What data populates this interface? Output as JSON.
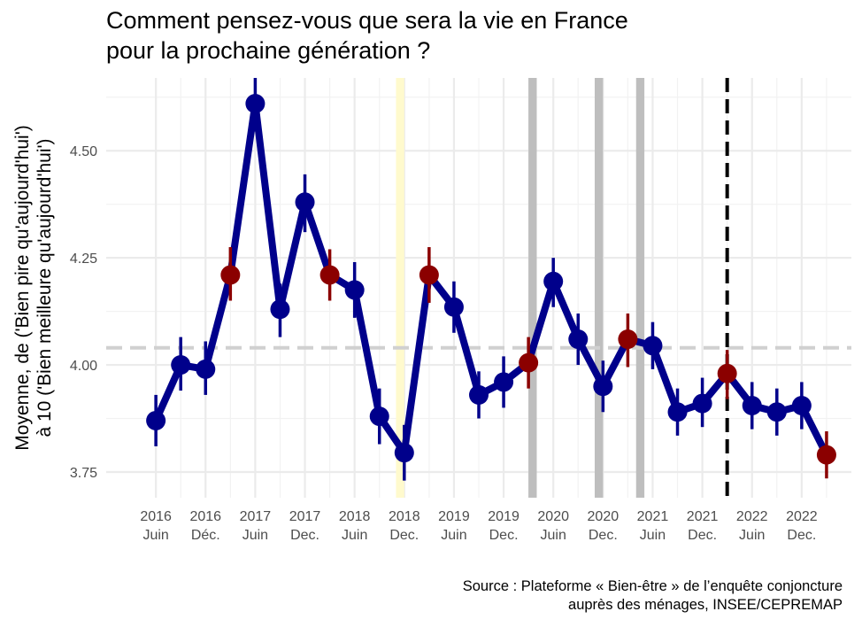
{
  "chart_data": {
    "type": "line",
    "title": [
      "Comment pensez-vous que sera la vie en France",
      "pour la prochaine génération ?"
    ],
    "ylabel": [
      "Moyenne, de  ('Bien pire qu'aujourd'hui')",
      "à 10 ('Bien meilleure qu'aujourd'hui')"
    ],
    "xlabel": "",
    "source": [
      "Source : Plateforme « Bien-être » de l’enquête conjoncture",
      "auprès des ménages, INSEE/CEPREMAP"
    ],
    "ylim": [
      3.69,
      4.67
    ],
    "y_ticks": [
      3.75,
      4.0,
      4.25,
      4.5
    ],
    "y_tick_labels": [
      "3.75",
      "4.00",
      "4.25",
      "4.50"
    ],
    "x_ticks": [
      {
        "year": "2016",
        "label": "Juin",
        "date": "2016-06"
      },
      {
        "year": "2016",
        "label": "Déc.",
        "date": "2016-12"
      },
      {
        "year": "2017",
        "label": "Juin",
        "date": "2017-06"
      },
      {
        "year": "2017",
        "label": "Dec.",
        "date": "2017-12"
      },
      {
        "year": "2018",
        "label": "Juin",
        "date": "2018-06"
      },
      {
        "year": "2018",
        "label": "Dec.",
        "date": "2018-12"
      },
      {
        "year": "2019",
        "label": "Juin",
        "date": "2019-06"
      },
      {
        "year": "2019",
        "label": "Dec.",
        "date": "2019-12"
      },
      {
        "year": "2020",
        "label": "Juin",
        "date": "2020-06"
      },
      {
        "year": "2020",
        "label": "Dec.",
        "date": "2020-12"
      },
      {
        "year": "2021",
        "label": "Juin",
        "date": "2021-06"
      },
      {
        "year": "2021",
        "label": "Dec.",
        "date": "2021-12"
      },
      {
        "year": "2022",
        "label": "Juin",
        "date": "2022-06"
      },
      {
        "year": "2022",
        "label": "Dec.",
        "date": "2022-12"
      }
    ],
    "x_range": [
      "2015-12",
      "2023-06"
    ],
    "reference_line": {
      "value": 4.04,
      "style": "dashed",
      "color": "#d0d0d0"
    },
    "vertical_line": {
      "date": "2022-03",
      "style": "dashed",
      "color": "#000000"
    },
    "shaded_periods": [
      {
        "start": "2018-11",
        "end": "2018-12",
        "color": "#fffacd"
      },
      {
        "start": "2020-03",
        "end": "2020-04",
        "color": "#bebebe"
      },
      {
        "start": "2020-11",
        "end": "2020-12",
        "color": "#bebebe"
      },
      {
        "start": "2021-04",
        "end": "2021-05",
        "color": "#bebebe"
      }
    ],
    "grid": true,
    "line_color": "#00008b",
    "highlight_color": "#8b0000",
    "series": [
      {
        "points": [
          {
            "date": "2016-06",
            "y": 3.87,
            "lo": 3.81,
            "hi": 3.93,
            "highlight": false
          },
          {
            "date": "2016-09",
            "y": 4.0,
            "lo": 3.94,
            "hi": 4.065,
            "highlight": false
          },
          {
            "date": "2016-12",
            "y": 3.99,
            "lo": 3.93,
            "hi": 4.055,
            "highlight": false
          },
          {
            "date": "2017-03",
            "y": 4.21,
            "lo": 4.15,
            "hi": 4.275,
            "highlight": true
          },
          {
            "date": "2017-06",
            "y": 4.61,
            "lo": 4.545,
            "hi": 4.67,
            "highlight": false
          },
          {
            "date": "2017-09",
            "y": 4.13,
            "lo": 4.065,
            "hi": 4.19,
            "highlight": false
          },
          {
            "date": "2017-12",
            "y": 4.38,
            "lo": 4.31,
            "hi": 4.445,
            "highlight": false
          },
          {
            "date": "2018-03",
            "y": 4.21,
            "lo": 4.15,
            "hi": 4.27,
            "highlight": true
          },
          {
            "date": "2018-06",
            "y": 4.175,
            "lo": 4.11,
            "hi": 4.24,
            "highlight": false
          },
          {
            "date": "2018-09",
            "y": 3.88,
            "lo": 3.815,
            "hi": 3.945,
            "highlight": false
          },
          {
            "date": "2018-12",
            "y": 3.795,
            "lo": 3.73,
            "hi": 3.86,
            "highlight": false
          },
          {
            "date": "2019-03",
            "y": 4.21,
            "lo": 4.145,
            "hi": 4.275,
            "highlight": true
          },
          {
            "date": "2019-06",
            "y": 4.135,
            "lo": 4.075,
            "hi": 4.195,
            "highlight": false
          },
          {
            "date": "2019-09",
            "y": 3.93,
            "lo": 3.875,
            "hi": 3.985,
            "highlight": false
          },
          {
            "date": "2019-12",
            "y": 3.96,
            "lo": 3.9,
            "hi": 4.02,
            "highlight": false
          },
          {
            "date": "2020-03",
            "y": 4.005,
            "lo": 3.945,
            "hi": 4.065,
            "highlight": true
          },
          {
            "date": "2020-06",
            "y": 4.195,
            "lo": 4.135,
            "hi": 4.25,
            "highlight": false
          },
          {
            "date": "2020-09",
            "y": 4.06,
            "lo": 4.0,
            "hi": 4.12,
            "highlight": false
          },
          {
            "date": "2020-12",
            "y": 3.95,
            "lo": 3.89,
            "hi": 4.01,
            "highlight": false
          },
          {
            "date": "2021-03",
            "y": 4.06,
            "lo": 3.995,
            "hi": 4.12,
            "highlight": true
          },
          {
            "date": "2021-06",
            "y": 4.045,
            "lo": 3.99,
            "hi": 4.1,
            "highlight": false
          },
          {
            "date": "2021-09",
            "y": 3.89,
            "lo": 3.835,
            "hi": 3.945,
            "highlight": false
          },
          {
            "date": "2021-12",
            "y": 3.91,
            "lo": 3.855,
            "hi": 3.97,
            "highlight": false
          },
          {
            "date": "2022-03",
            "y": 3.98,
            "lo": 3.92,
            "hi": 4.035,
            "highlight": true
          },
          {
            "date": "2022-06",
            "y": 3.905,
            "lo": 3.85,
            "hi": 3.96,
            "highlight": false
          },
          {
            "date": "2022-09",
            "y": 3.89,
            "lo": 3.835,
            "hi": 3.945,
            "highlight": false
          },
          {
            "date": "2022-12",
            "y": 3.905,
            "lo": 3.85,
            "hi": 3.96,
            "highlight": false
          },
          {
            "date": "2023-03",
            "y": 3.79,
            "lo": 3.735,
            "hi": 3.845,
            "highlight": true
          }
        ]
      }
    ]
  }
}
